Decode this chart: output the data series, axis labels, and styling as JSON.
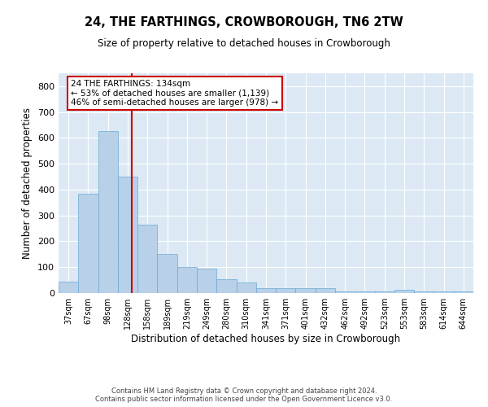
{
  "title": "24, THE FARTHINGS, CROWBOROUGH, TN6 2TW",
  "subtitle": "Size of property relative to detached houses in Crowborough",
  "xlabel": "Distribution of detached houses by size in Crowborough",
  "ylabel": "Number of detached properties",
  "bar_color": "#b8d0e8",
  "bar_edge_color": "#6aaad4",
  "background_color": "#dce9f5",
  "grid_color": "#ffffff",
  "categories": [
    "37sqm",
    "67sqm",
    "98sqm",
    "128sqm",
    "158sqm",
    "189sqm",
    "219sqm",
    "249sqm",
    "280sqm",
    "310sqm",
    "341sqm",
    "371sqm",
    "401sqm",
    "432sqm",
    "462sqm",
    "492sqm",
    "523sqm",
    "553sqm",
    "583sqm",
    "614sqm",
    "644sqm"
  ],
  "values": [
    45,
    385,
    625,
    450,
    265,
    150,
    100,
    95,
    55,
    40,
    20,
    18,
    18,
    18,
    5,
    5,
    5,
    12,
    5,
    5,
    5
  ],
  "ylim": [
    0,
    850
  ],
  "yticks": [
    0,
    100,
    200,
    300,
    400,
    500,
    600,
    700,
    800
  ],
  "property_line_x": 3.2,
  "property_line_color": "#cc0000",
  "annotation_text": "24 THE FARTHINGS: 134sqm\n← 53% of detached houses are smaller (1,139)\n46% of semi-detached houses are larger (978) →",
  "annotation_box_color": "#ffffff",
  "annotation_box_edge_color": "#cc0000",
  "footer_line1": "Contains HM Land Registry data © Crown copyright and database right 2024.",
  "footer_line2": "Contains public sector information licensed under the Open Government Licence v3.0."
}
